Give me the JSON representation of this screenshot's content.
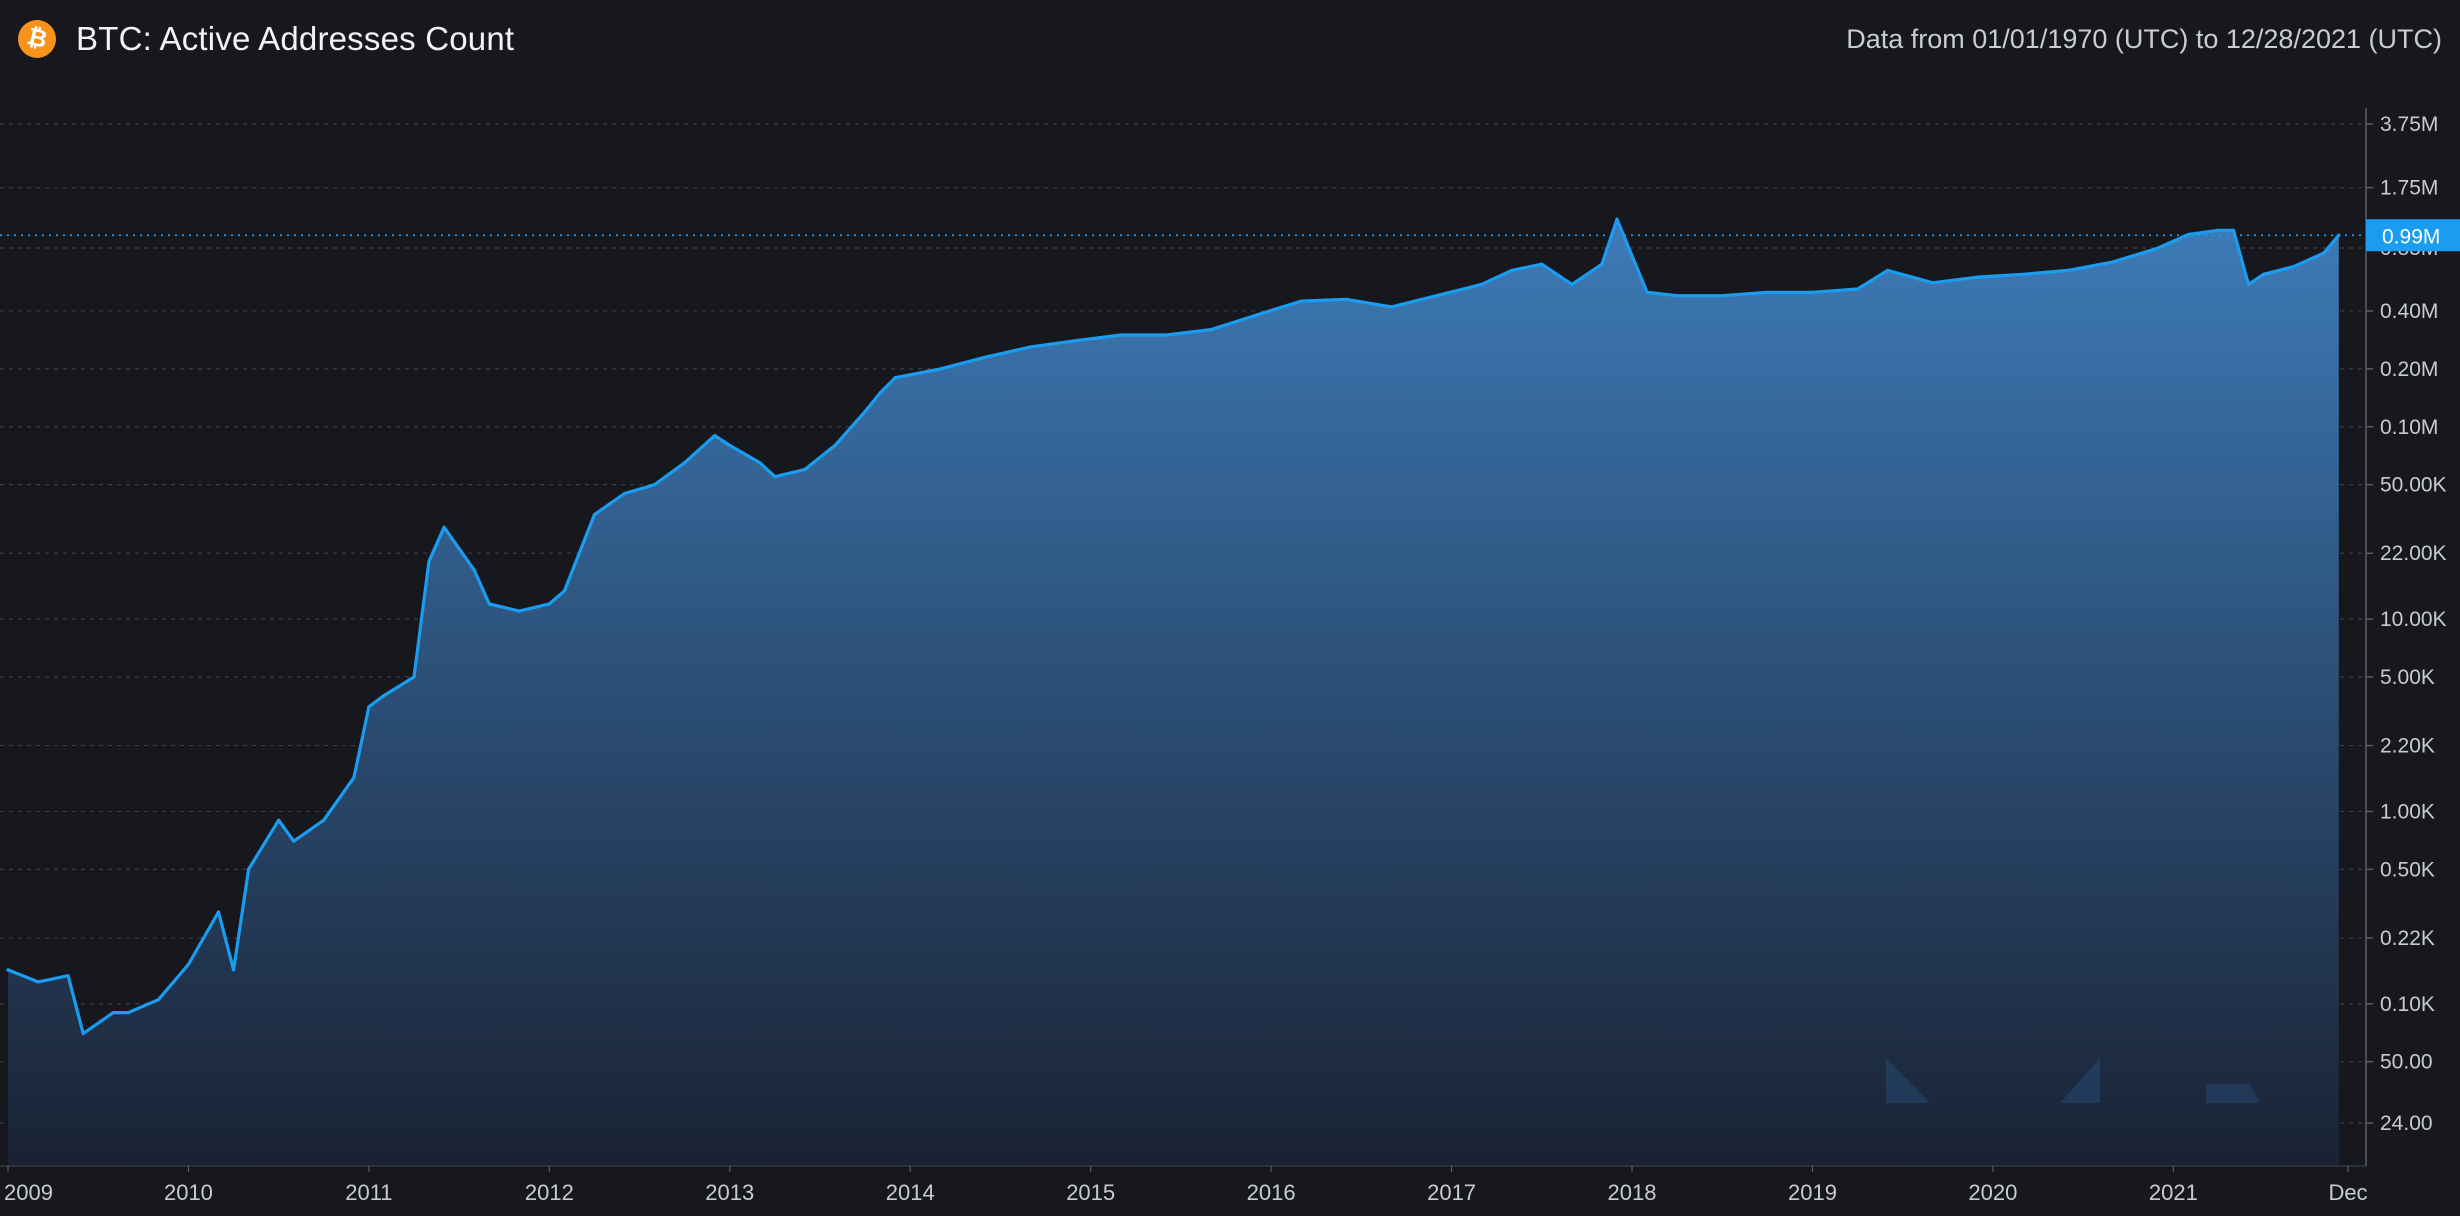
{
  "header": {
    "title": "BTC: Active Addresses Count",
    "date_range": "Data from 01/01/1970 (UTC) to 12/28/2021 (UTC)",
    "icon": "bitcoin-icon"
  },
  "colors": {
    "background": "#17181e",
    "line": "#1a9cf0",
    "fill_top": "#3d7bb8",
    "fill_bottom": "#1a2233",
    "grid": "#3a3d47",
    "axis_text": "#c8cbd2",
    "last_value_badge": "#1a9cf0",
    "bitcoin_orange": "#f7931a"
  },
  "chart_data": {
    "type": "area",
    "title": "BTC: Active Addresses Count",
    "y_scale": "log",
    "grid": true,
    "last_value_label": "0.99M",
    "y_ticks": [
      "3.75M",
      "1.75M",
      "0.85M",
      "0.40M",
      "0.20M",
      "0.10M",
      "50.00K",
      "22.00K",
      "10.00K",
      "5.00K",
      "2.20K",
      "1.00K",
      "0.50K",
      "0.22K",
      "0.10K",
      "50.00",
      "24.00"
    ],
    "x_ticks": [
      "2009",
      "2010",
      "2011",
      "2012",
      "2013",
      "2014",
      "2015",
      "2016",
      "2017",
      "2018",
      "2019",
      "2020",
      "2021",
      "Dec"
    ],
    "x": [
      "2009-01",
      "2009-03",
      "2009-05",
      "2009-06",
      "2009-08",
      "2009-09",
      "2009-11",
      "2010-01",
      "2010-03",
      "2010-04",
      "2010-05",
      "2010-07",
      "2010-08",
      "2010-10",
      "2010-12",
      "2011-01",
      "2011-02",
      "2011-04",
      "2011-05",
      "2011-06",
      "2011-08",
      "2011-09",
      "2011-11",
      "2012-01",
      "2012-02",
      "2012-04",
      "2012-06",
      "2012-08",
      "2012-10",
      "2012-12",
      "2013-01",
      "2013-03",
      "2013-04",
      "2013-06",
      "2013-08",
      "2013-10",
      "2013-11",
      "2013-12",
      "2014-03",
      "2014-06",
      "2014-09",
      "2014-12",
      "2015-03",
      "2015-06",
      "2015-09",
      "2015-12",
      "2016-03",
      "2016-06",
      "2016-09",
      "2016-12",
      "2017-03",
      "2017-05",
      "2017-07",
      "2017-09",
      "2017-11",
      "2017-12",
      "2018-02",
      "2018-04",
      "2018-07",
      "2018-10",
      "2019-01",
      "2019-04",
      "2019-06",
      "2019-09",
      "2019-12",
      "2020-03",
      "2020-06",
      "2020-09",
      "2020-12",
      "2021-02",
      "2021-04",
      "2021-05",
      "2021-06",
      "2021-07",
      "2021-09",
      "2021-11",
      "2021-12"
    ],
    "y": [
      150,
      130,
      140,
      70,
      90,
      90,
      105,
      160,
      300,
      150,
      500,
      900,
      700,
      900,
      1500,
      3500,
      4000,
      5000,
      20000,
      30000,
      18000,
      12000,
      11000,
      12000,
      14000,
      35000,
      45000,
      50000,
      65000,
      90000,
      80000,
      65000,
      55000,
      60000,
      80000,
      120000,
      150000,
      180000,
      200000,
      230000,
      260000,
      280000,
      300000,
      300000,
      320000,
      380000,
      450000,
      460000,
      420000,
      480000,
      550000,
      650000,
      700000,
      550000,
      700000,
      1200000,
      500000,
      480000,
      480000,
      500000,
      500000,
      520000,
      650000,
      560000,
      600000,
      620000,
      650000,
      720000,
      850000,
      1000000,
      1050000,
      1050000,
      550000,
      620000,
      680000,
      800000,
      990000
    ]
  }
}
